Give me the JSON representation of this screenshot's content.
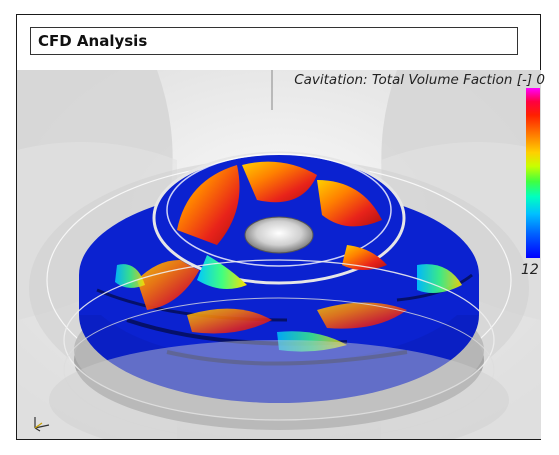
{
  "header": {
    "title": "CFD Analysis"
  },
  "legend": {
    "label": "Cavitation: Total Volume Faction [-] 0",
    "min_value": "12",
    "gradient_colors": [
      "#ff00ff",
      "#ff0040",
      "#ff2000",
      "#ff8000",
      "#ffd000",
      "#c8ff00",
      "#40ff40",
      "#00ffc0",
      "#00c0ff",
      "#0060ff",
      "#0000ff"
    ]
  },
  "colors": {
    "impeller_blue": "#0a1fc4",
    "hot_red": "#e8231a",
    "housing_gray": "#c8c8c8"
  }
}
